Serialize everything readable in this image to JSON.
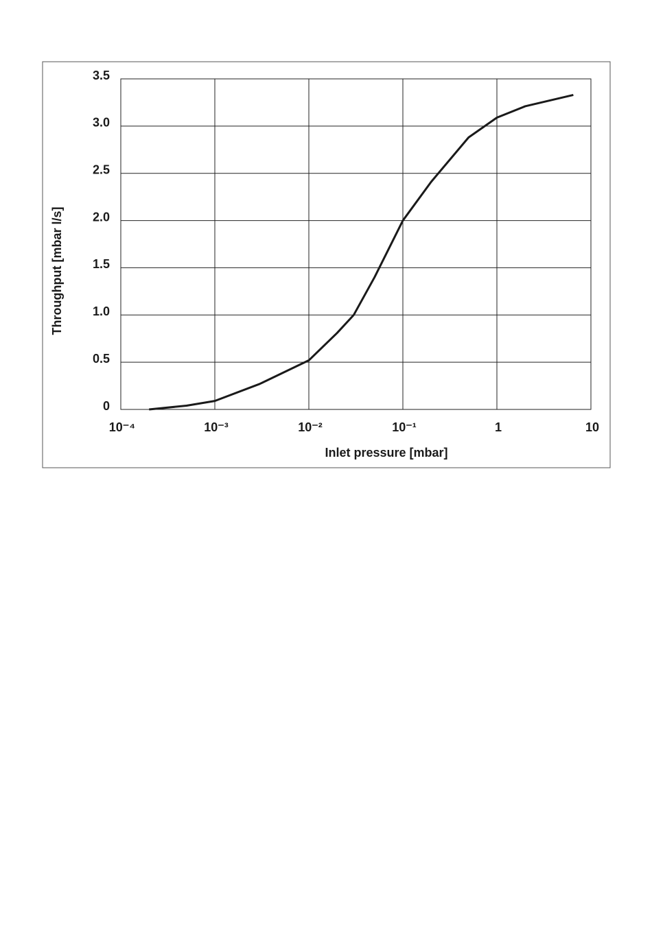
{
  "chart_data": {
    "type": "line",
    "x_label": "Inlet pressure [mbar]",
    "y_label": "Throughput [mbar l/s]",
    "x": [
      0.0002,
      0.0005,
      0.001,
      0.003,
      0.01,
      0.02,
      0.03,
      0.05,
      0.1,
      0.2,
      0.5,
      1,
      2,
      6.5
    ],
    "values": [
      0.0,
      0.04,
      0.09,
      0.27,
      0.52,
      0.81,
      1.0,
      1.4,
      2.0,
      2.41,
      2.88,
      3.09,
      3.21,
      3.33
    ],
    "color": "#1a1a1a",
    "xscale": "log",
    "xlim": [
      0.0001,
      10
    ],
    "xticks": [
      {
        "value": 0.0001,
        "label": "10⁻⁴"
      },
      {
        "value": 0.001,
        "label": "10⁻³"
      },
      {
        "value": 0.01,
        "label": "10⁻²"
      },
      {
        "value": 0.1,
        "label": "10⁻¹"
      },
      1,
      10
    ],
    "ylim": [
      0,
      3.5
    ],
    "yticks": [
      0,
      0.5,
      {
        "value": 1,
        "label": "1.0"
      },
      1.5,
      {
        "value": 2,
        "label": "2.0"
      },
      2.5,
      {
        "value": 3,
        "label": "3.0"
      },
      3.5
    ],
    "grid": true
  }
}
